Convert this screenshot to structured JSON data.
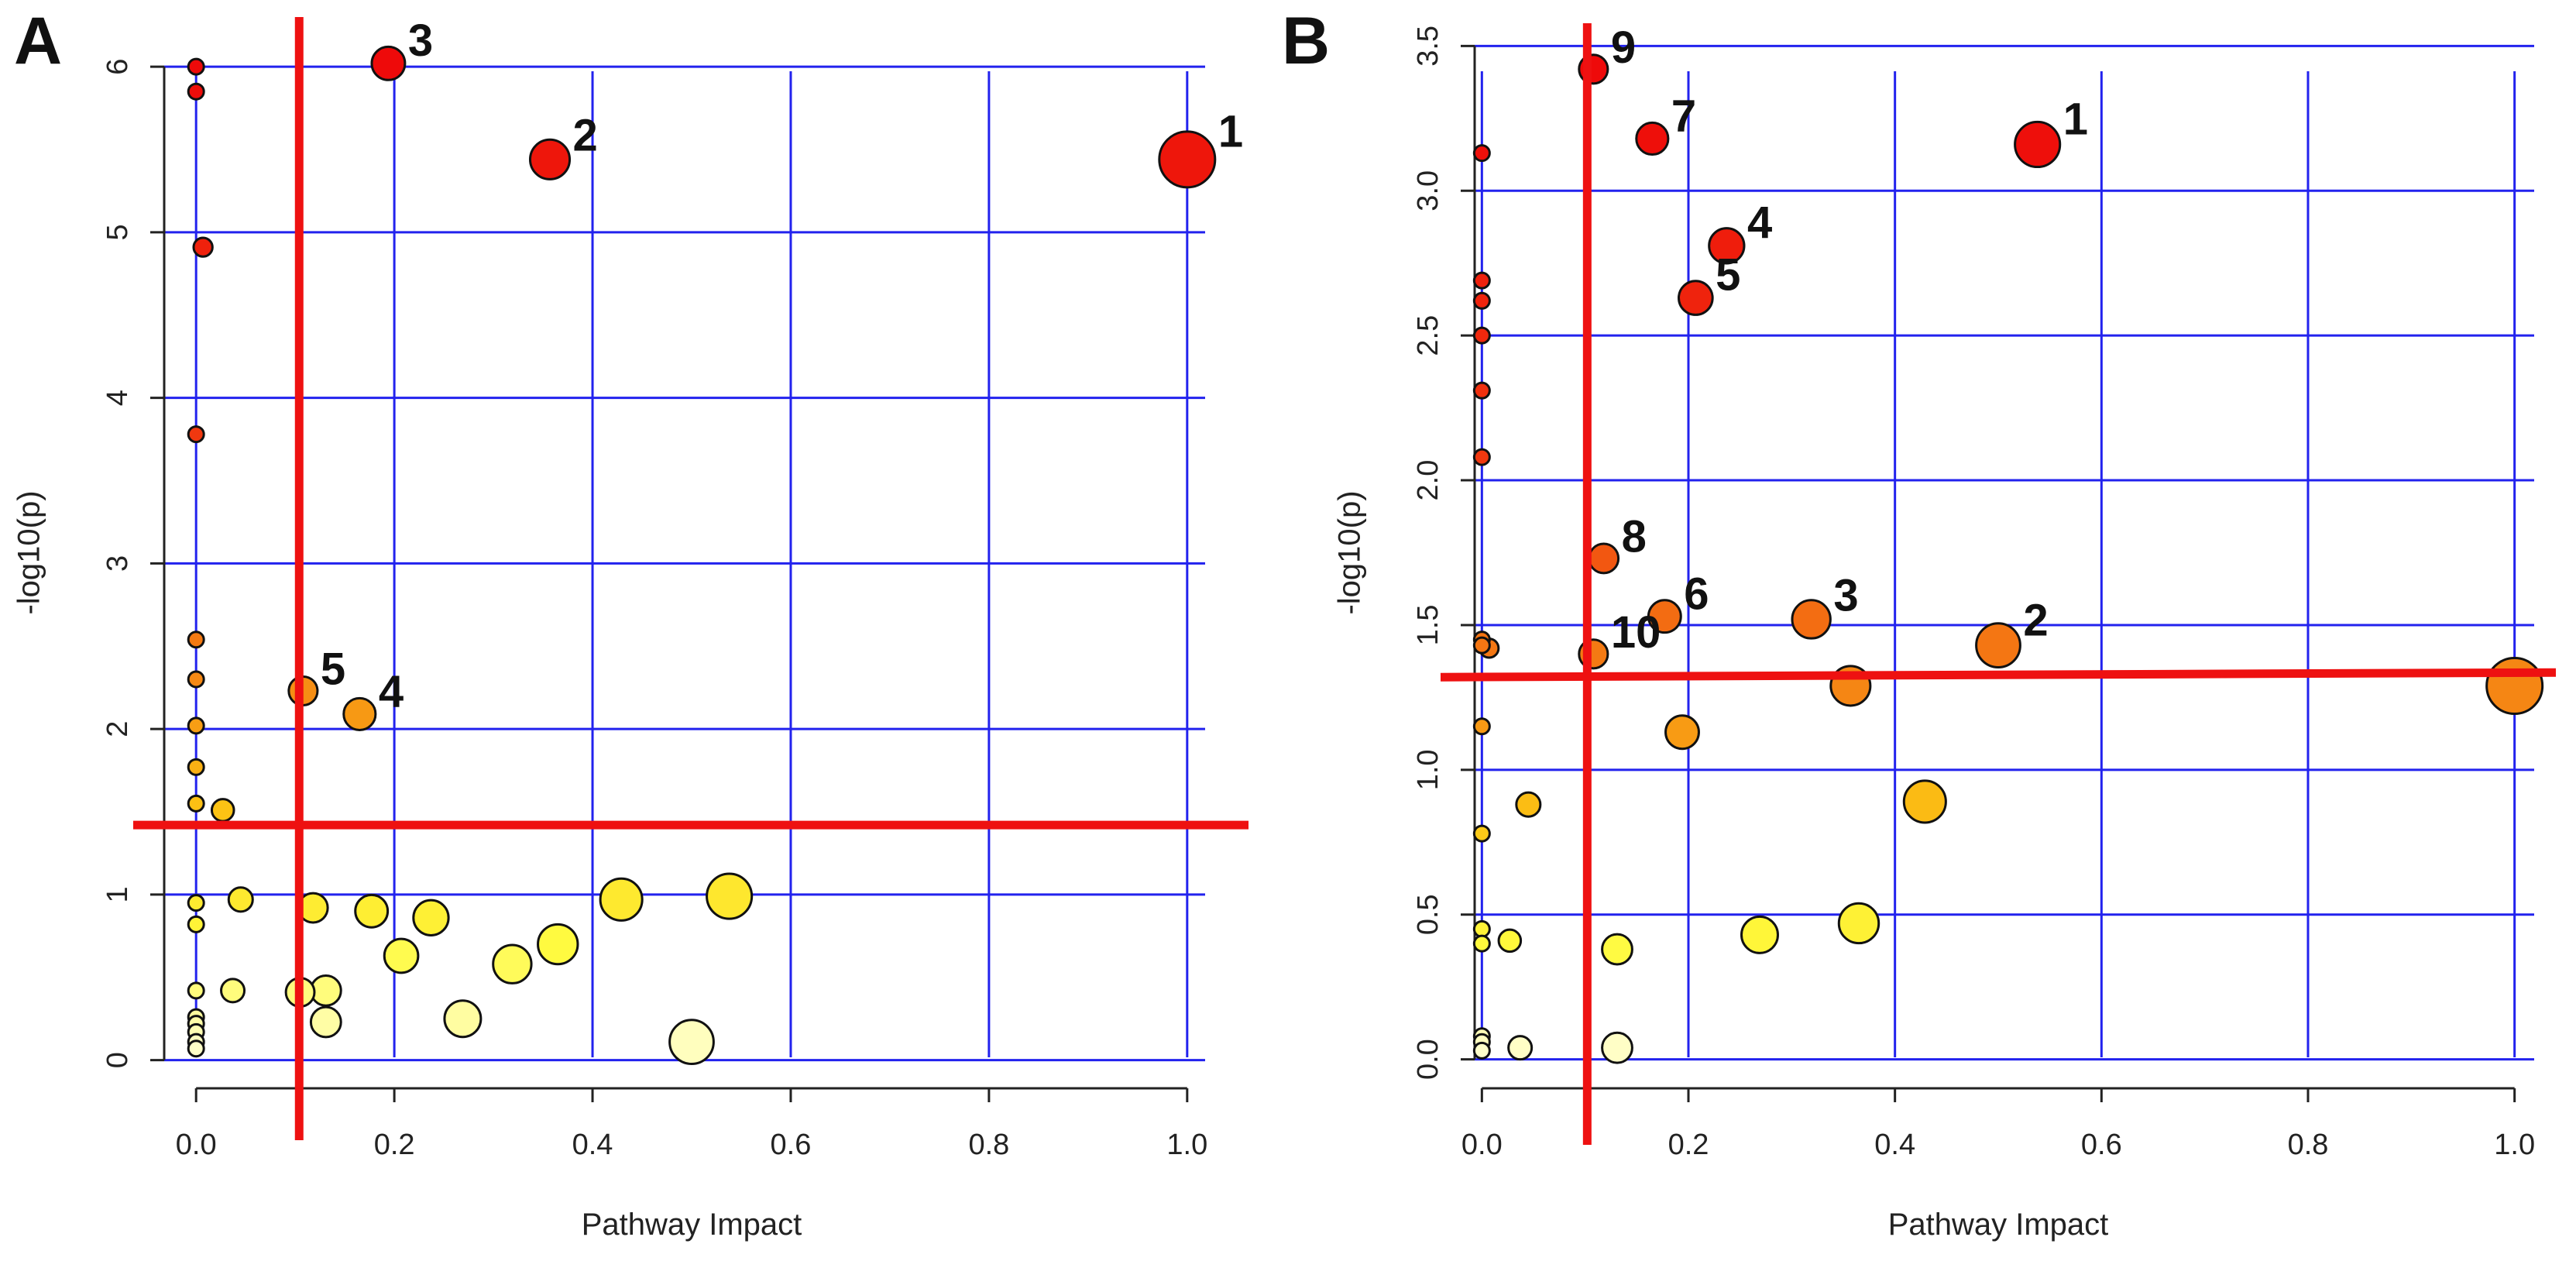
{
  "chart_data": [
    {
      "type": "scatter",
      "panel_label": "A",
      "title": "",
      "xlabel": "Pathway Impact",
      "ylabel": "-log10(p)",
      "xlim": [
        -0.04,
        1.04
      ],
      "ylim": [
        -0.17,
        6.3
      ],
      "x_ticks": [
        0,
        0.2,
        0.4,
        0.6,
        0.8,
        1.0
      ],
      "x_tick_labels": [
        "0.0",
        "0.2",
        "0.4",
        "0.6",
        "0.8",
        "1.0"
      ],
      "y_ticks": [
        0,
        1,
        2,
        3,
        4,
        5,
        6
      ],
      "y_tick_labels": [
        "0",
        "1",
        "2",
        "3",
        "4",
        "5",
        "6"
      ],
      "grid": true,
      "threshold_x": 0.104,
      "threshold_y": 1.42,
      "points": [
        {
          "x": 1.0,
          "y": 5.44,
          "impact_size": 1.0,
          "label": "1"
        },
        {
          "x": 0.357,
          "y": 5.44,
          "impact_size": 0.357,
          "label": "2"
        },
        {
          "x": 0.194,
          "y": 6.02,
          "impact_size": 0.194,
          "label": "3"
        },
        {
          "x": 0.165,
          "y": 2.09,
          "impact_size": 0.165,
          "label": "4"
        },
        {
          "x": 0.108,
          "y": 2.23,
          "impact_size": 0.108,
          "label": "5"
        },
        {
          "x": 0.0,
          "y": 6.0,
          "impact_size": 0.0,
          "label": ""
        },
        {
          "x": 0.0,
          "y": 5.85,
          "impact_size": 0.0,
          "label": ""
        },
        {
          "x": 0.007,
          "y": 4.91,
          "impact_size": 0.007,
          "label": ""
        },
        {
          "x": 0.0,
          "y": 3.78,
          "impact_size": 0.0,
          "label": ""
        },
        {
          "x": 0.0,
          "y": 2.54,
          "impact_size": 0.0,
          "label": ""
        },
        {
          "x": 0.0,
          "y": 2.3,
          "impact_size": 0.0,
          "label": ""
        },
        {
          "x": 0.0,
          "y": 2.02,
          "impact_size": 0.0,
          "label": ""
        },
        {
          "x": 0.0,
          "y": 1.77,
          "impact_size": 0.0,
          "label": ""
        },
        {
          "x": 0.0,
          "y": 1.55,
          "impact_size": 0.0,
          "label": ""
        },
        {
          "x": 0.027,
          "y": 1.51,
          "impact_size": 0.027,
          "label": ""
        },
        {
          "x": 0.0,
          "y": 0.95,
          "impact_size": 0.0,
          "label": ""
        },
        {
          "x": 0.0,
          "y": 0.82,
          "impact_size": 0.0,
          "label": ""
        },
        {
          "x": 0.045,
          "y": 0.97,
          "impact_size": 0.045,
          "label": ""
        },
        {
          "x": 0.0,
          "y": 0.42,
          "impact_size": 0.0,
          "label": ""
        },
        {
          "x": 0.0,
          "y": 0.26,
          "impact_size": 0.0,
          "label": ""
        },
        {
          "x": 0.0,
          "y": 0.22,
          "impact_size": 0.0,
          "label": ""
        },
        {
          "x": 0.0,
          "y": 0.17,
          "impact_size": 0.0,
          "label": ""
        },
        {
          "x": 0.0,
          "y": 0.11,
          "impact_size": 0.0,
          "label": ""
        },
        {
          "x": 0.0,
          "y": 0.07,
          "impact_size": 0.0,
          "label": ""
        },
        {
          "x": 0.037,
          "y": 0.42,
          "impact_size": 0.037,
          "label": ""
        },
        {
          "x": 0.118,
          "y": 0.92,
          "impact_size": 0.118,
          "label": ""
        },
        {
          "x": 0.177,
          "y": 0.9,
          "impact_size": 0.177,
          "label": ""
        },
        {
          "x": 0.237,
          "y": 0.86,
          "impact_size": 0.237,
          "label": ""
        },
        {
          "x": 0.105,
          "y": 0.41,
          "impact_size": 0.105,
          "label": ""
        },
        {
          "x": 0.131,
          "y": 0.42,
          "impact_size": 0.131,
          "label": ""
        },
        {
          "x": 0.131,
          "y": 0.23,
          "impact_size": 0.131,
          "label": ""
        },
        {
          "x": 0.207,
          "y": 0.63,
          "impact_size": 0.207,
          "label": ""
        },
        {
          "x": 0.269,
          "y": 0.25,
          "impact_size": 0.269,
          "label": ""
        },
        {
          "x": 0.319,
          "y": 0.58,
          "impact_size": 0.319,
          "label": ""
        },
        {
          "x": 0.365,
          "y": 0.7,
          "impact_size": 0.365,
          "label": ""
        },
        {
          "x": 0.429,
          "y": 0.97,
          "impact_size": 0.429,
          "label": ""
        },
        {
          "x": 0.538,
          "y": 0.99,
          "impact_size": 0.538,
          "label": ""
        },
        {
          "x": 0.5,
          "y": 0.11,
          "impact_size": 0.5,
          "label": ""
        }
      ]
    },
    {
      "type": "scatter",
      "panel_label": "B",
      "title": "",
      "xlabel": "Pathway Impact",
      "ylabel": "-log10(p)",
      "xlim": [
        -0.04,
        1.04
      ],
      "ylim": [
        -0.1,
        3.6
      ],
      "x_ticks": [
        0,
        0.2,
        0.4,
        0.6,
        0.8,
        1.0
      ],
      "x_tick_labels": [
        "0.0",
        "0.2",
        "0.4",
        "0.6",
        "0.8",
        "1.0"
      ],
      "y_ticks": [
        0,
        0.5,
        1.0,
        1.5,
        2.0,
        2.5,
        3.0,
        3.5
      ],
      "y_tick_labels": [
        "0.0",
        "0.5",
        "1.0",
        "1.5",
        "2.0",
        "2.5",
        "3.0",
        "3.5"
      ],
      "grid": true,
      "threshold_x": 0.102,
      "threshold_y": 1.32,
      "points": [
        {
          "x": 0.538,
          "y": 3.16,
          "impact_size": 0.538,
          "label": "1"
        },
        {
          "x": 0.5,
          "y": 1.43,
          "impact_size": 0.5,
          "label": "2"
        },
        {
          "x": 0.319,
          "y": 1.52,
          "impact_size": 0.319,
          "label": "3"
        },
        {
          "x": 0.237,
          "y": 2.81,
          "impact_size": 0.237,
          "label": "4"
        },
        {
          "x": 0.207,
          "y": 2.63,
          "impact_size": 0.207,
          "label": "5"
        },
        {
          "x": 0.177,
          "y": 1.53,
          "impact_size": 0.177,
          "label": "6"
        },
        {
          "x": 0.165,
          "y": 3.18,
          "impact_size": 0.165,
          "label": "7"
        },
        {
          "x": 0.118,
          "y": 1.73,
          "impact_size": 0.118,
          "label": "8"
        },
        {
          "x": 0.108,
          "y": 3.42,
          "impact_size": 0.108,
          "label": "9"
        },
        {
          "x": 0.108,
          "y": 1.4,
          "impact_size": 0.108,
          "label": "10"
        },
        {
          "x": 1.0,
          "y": 1.29,
          "impact_size": 1.0,
          "label": ""
        },
        {
          "x": 0.357,
          "y": 1.29,
          "impact_size": 0.357,
          "label": ""
        },
        {
          "x": 0.194,
          "y": 1.13,
          "impact_size": 0.194,
          "label": ""
        },
        {
          "x": 0.429,
          "y": 0.89,
          "impact_size": 0.429,
          "label": ""
        },
        {
          "x": 0.045,
          "y": 0.88,
          "impact_size": 0.045,
          "label": ""
        },
        {
          "x": 0.269,
          "y": 0.43,
          "impact_size": 0.269,
          "label": ""
        },
        {
          "x": 0.365,
          "y": 0.47,
          "impact_size": 0.365,
          "label": ""
        },
        {
          "x": 0.131,
          "y": 0.38,
          "impact_size": 0.131,
          "label": ""
        },
        {
          "x": 0.131,
          "y": 0.04,
          "impact_size": 0.131,
          "label": ""
        },
        {
          "x": 0.037,
          "y": 0.04,
          "impact_size": 0.037,
          "label": ""
        },
        {
          "x": 0.027,
          "y": 0.41,
          "impact_size": 0.027,
          "label": ""
        },
        {
          "x": 0.0,
          "y": 3.13,
          "impact_size": 0.0,
          "label": ""
        },
        {
          "x": 0.0,
          "y": 2.69,
          "impact_size": 0.0,
          "label": ""
        },
        {
          "x": 0.0,
          "y": 2.62,
          "impact_size": 0.0,
          "label": ""
        },
        {
          "x": 0.0,
          "y": 2.5,
          "impact_size": 0.0,
          "label": ""
        },
        {
          "x": 0.0,
          "y": 2.31,
          "impact_size": 0.0,
          "label": ""
        },
        {
          "x": 0.0,
          "y": 2.08,
          "impact_size": 0.0,
          "label": ""
        },
        {
          "x": 0.0,
          "y": 1.45,
          "impact_size": 0.0,
          "label": ""
        },
        {
          "x": 0.0,
          "y": 1.43,
          "impact_size": 0.0,
          "label": ""
        },
        {
          "x": 0.007,
          "y": 1.42,
          "impact_size": 0.007,
          "label": ""
        },
        {
          "x": 0.0,
          "y": 1.15,
          "impact_size": 0.0,
          "label": ""
        },
        {
          "x": 0.0,
          "y": 0.78,
          "impact_size": 0.0,
          "label": ""
        },
        {
          "x": 0.0,
          "y": 0.45,
          "impact_size": 0.0,
          "label": ""
        },
        {
          "x": 0.0,
          "y": 0.4,
          "impact_size": 0.0,
          "label": ""
        },
        {
          "x": 0.0,
          "y": 0.08,
          "impact_size": 0.0,
          "label": ""
        },
        {
          "x": 0.0,
          "y": 0.06,
          "impact_size": 0.0,
          "label": ""
        },
        {
          "x": 0.0,
          "y": 0.03,
          "impact_size": 0.0,
          "label": ""
        }
      ]
    }
  ]
}
